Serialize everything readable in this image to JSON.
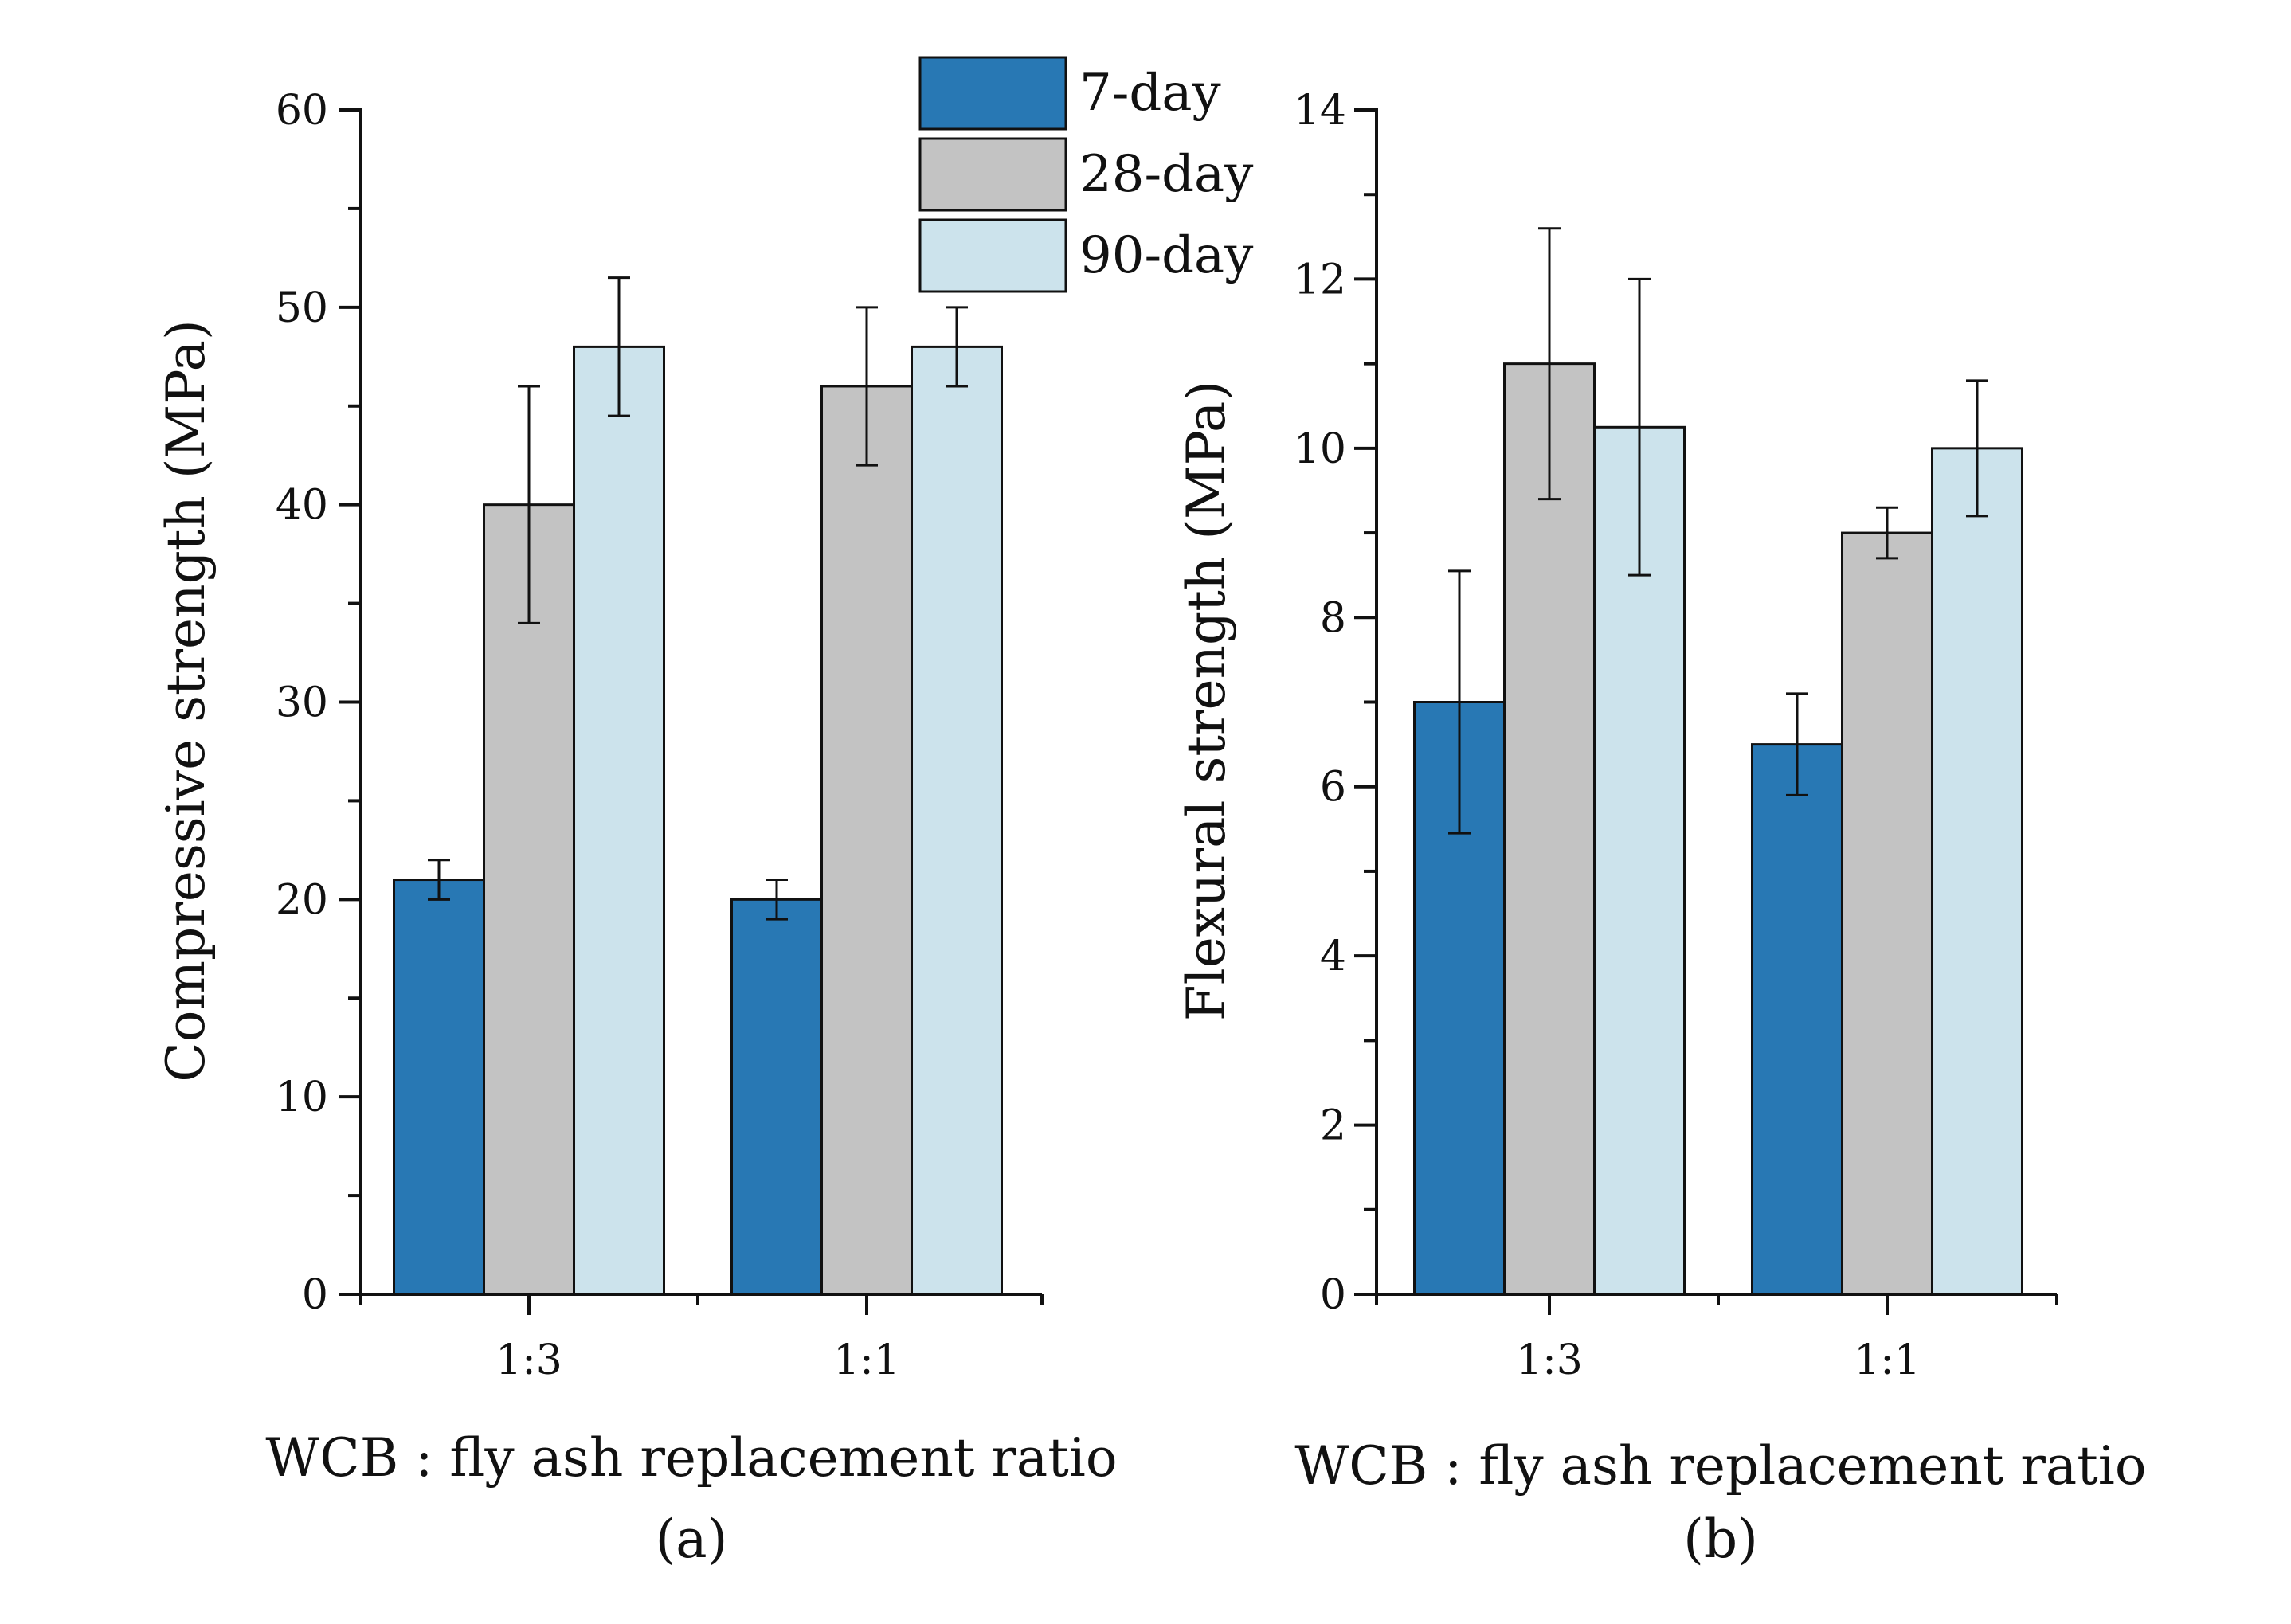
{
  "chart_data": [
    {
      "type": "bar",
      "panel": "(a)",
      "xlabel": "WCB : fly ash replacement ratio",
      "ylabel": "Compressive strength (MPa)",
      "ylim": [
        0,
        60
      ],
      "yticks": [
        0,
        10,
        20,
        30,
        40,
        50,
        60
      ],
      "categories": [
        "1:3",
        "1:1"
      ],
      "series": [
        {
          "name": "7-day",
          "values": [
            21,
            20
          ],
          "error": [
            1,
            1
          ]
        },
        {
          "name": "28-day",
          "values": [
            40,
            46
          ],
          "error": [
            6,
            4
          ]
        },
        {
          "name": "90-day",
          "values": [
            48,
            48
          ],
          "error": [
            3.5,
            2
          ]
        }
      ]
    },
    {
      "type": "bar",
      "panel": "(b)",
      "xlabel": "WCB : fly ash replacement ratio",
      "ylabel": "Flexural strength (MPa)",
      "ylim": [
        0,
        14
      ],
      "yticks": [
        0,
        2,
        4,
        6,
        8,
        10,
        12,
        14
      ],
      "categories": [
        "1:3",
        "1:1"
      ],
      "series": [
        {
          "name": "7-day",
          "values": [
            7,
            6.5
          ],
          "error": [
            1.55,
            0.6
          ]
        },
        {
          "name": "28-day",
          "values": [
            11,
            9
          ],
          "error": [
            1.6,
            0.3
          ]
        },
        {
          "name": "90-day",
          "values": [
            10.25,
            10
          ],
          "error": [
            1.75,
            0.8
          ]
        }
      ]
    }
  ],
  "legend": {
    "entries": [
      "7-day",
      "28-day",
      "90-day"
    ],
    "placement": "top-center"
  },
  "colors": {
    "7-day": "#2878b4",
    "28-day": "#c3c3c3",
    "90-day": "#cce3ec",
    "axis": "#111111"
  }
}
